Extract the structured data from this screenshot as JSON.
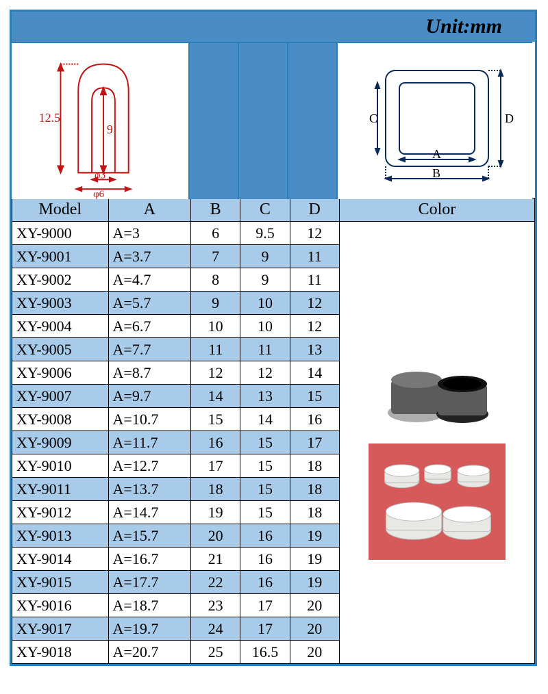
{
  "unit_label": "Unit:mm",
  "colors": {
    "border": "#2a7fb8",
    "header_bg": "#a7cbe8",
    "row_alt_bg": "#a7cbe8",
    "row_bg": "#ffffff",
    "blue_block": "#4a8cc5",
    "diagram_line": "#c01515",
    "diagram2_line": "#0a2a5a",
    "photo_red_bg": "#d65a5a",
    "cap_gray": "#5b5b5b",
    "cap_white": "#e8e8e4"
  },
  "diagram1": {
    "outer_height": "12.5",
    "inner_height": "9",
    "inner_dia": "φ3",
    "outer_dia": "φ6"
  },
  "diagram2": {
    "label_a": "A",
    "label_b": "B",
    "label_c": "C",
    "label_d": "D"
  },
  "columns": [
    "Model",
    "A",
    "B",
    "C",
    "D",
    "Color"
  ],
  "rows": [
    {
      "model": "XY-9000",
      "a": "A=3",
      "b": "6",
      "c": "9.5",
      "d": "12"
    },
    {
      "model": "XY-9001",
      "a": "A=3.7",
      "b": "7",
      "c": "9",
      "d": "11"
    },
    {
      "model": "XY-9002",
      "a": "A=4.7",
      "b": "8",
      "c": "9",
      "d": "11"
    },
    {
      "model": "XY-9003",
      "a": "A=5.7",
      "b": "9",
      "c": "10",
      "d": "12"
    },
    {
      "model": "XY-9004",
      "a": "A=6.7",
      "b": "10",
      "c": "10",
      "d": "12"
    },
    {
      "model": "XY-9005",
      "a": "A=7.7",
      "b": "11",
      "c": "11",
      "d": "13"
    },
    {
      "model": "XY-9006",
      "a": "A=8.7",
      "b": "12",
      "c": "12",
      "d": "14"
    },
    {
      "model": "XY-9007",
      "a": "A=9.7",
      "b": "14",
      "c": "13",
      "d": "15"
    },
    {
      "model": "XY-9008",
      "a": "A=10.7",
      "b": "15",
      "c": "14",
      "d": "16"
    },
    {
      "model": "XY-9009",
      "a": "A=11.7",
      "b": "16",
      "c": "15",
      "d": "17"
    },
    {
      "model": "XY-9010",
      "a": "A=12.7",
      "b": "17",
      "c": "15",
      "d": "18"
    },
    {
      "model": "XY-9011",
      "a": "A=13.7",
      "b": "18",
      "c": "15",
      "d": "18"
    },
    {
      "model": "XY-9012",
      "a": "A=14.7",
      "b": "19",
      "c": "15",
      "d": "18"
    },
    {
      "model": "XY-9013",
      "a": "A=15.7",
      "b": "20",
      "c": "16",
      "d": "19"
    },
    {
      "model": "XY-9014",
      "a": "A=16.7",
      "b": "21",
      "c": "16",
      "d": "19"
    },
    {
      "model": "XY-9015",
      "a": "A=17.7",
      "b": "22",
      "c": "16",
      "d": "19"
    },
    {
      "model": "XY-9016",
      "a": "A=18.7",
      "b": "23",
      "c": "17",
      "d": "20"
    },
    {
      "model": "XY-9017",
      "a": "A=19.7",
      "b": "24",
      "c": "17",
      "d": "20"
    },
    {
      "model": "XY-9018",
      "a": "A=20.7",
      "b": "25",
      "c": "16.5",
      "d": "20"
    }
  ]
}
